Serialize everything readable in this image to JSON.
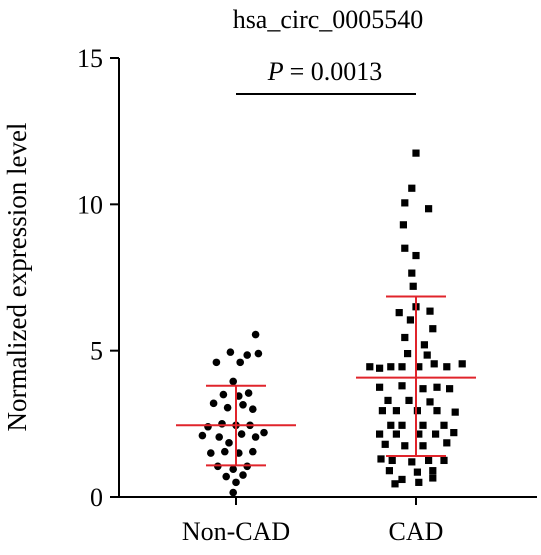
{
  "chart_data": {
    "type": "scatter",
    "title": "hsa_circ_0005540",
    "ylabel": "Normalized expression level",
    "xlabel": "",
    "ylim": [
      0,
      15
    ],
    "yticks": [
      0,
      5,
      10,
      15
    ],
    "categories": [
      "Non-CAD",
      "CAD"
    ],
    "annotation": {
      "p_label": "P",
      "p_value_text": "= 0.0013"
    },
    "colors": {
      "points": "#000000",
      "summary_lines": "#e0242b",
      "axis": "#000000"
    },
    "series": [
      {
        "name": "Non-CAD",
        "marker": "circle",
        "mean": 2.45,
        "sd_low": 1.08,
        "sd_high": 3.8,
        "points": [
          {
            "x": 0.14,
            "y": 5.55
          },
          {
            "x": -0.04,
            "y": 4.95
          },
          {
            "x": 0.08,
            "y": 4.85
          },
          {
            "x": 0.16,
            "y": 4.9
          },
          {
            "x": -0.14,
            "y": 4.6
          },
          {
            "x": 0.03,
            "y": 4.6
          },
          {
            "x": -0.02,
            "y": 3.95
          },
          {
            "x": -0.09,
            "y": 3.5
          },
          {
            "x": 0.02,
            "y": 3.45
          },
          {
            "x": 0.09,
            "y": 3.55
          },
          {
            "x": -0.16,
            "y": 3.2
          },
          {
            "x": -0.06,
            "y": 3.05
          },
          {
            "x": 0.05,
            "y": 3.15
          },
          {
            "x": 0.12,
            "y": 3.0
          },
          {
            "x": -0.2,
            "y": 2.4
          },
          {
            "x": -0.1,
            "y": 2.5
          },
          {
            "x": 0.0,
            "y": 2.45
          },
          {
            "x": 0.1,
            "y": 2.45
          },
          {
            "x": 0.2,
            "y": 2.2
          },
          {
            "x": -0.24,
            "y": 2.1
          },
          {
            "x": -0.12,
            "y": 2.05
          },
          {
            "x": 0.04,
            "y": 2.15
          },
          {
            "x": 0.14,
            "y": 2.05
          },
          {
            "x": -0.05,
            "y": 1.85
          },
          {
            "x": -0.18,
            "y": 1.5
          },
          {
            "x": -0.08,
            "y": 1.55
          },
          {
            "x": 0.02,
            "y": 1.5
          },
          {
            "x": 0.12,
            "y": 1.55
          },
          {
            "x": -0.13,
            "y": 1.05
          },
          {
            "x": -0.02,
            "y": 0.95
          },
          {
            "x": 0.08,
            "y": 1.05
          },
          {
            "x": -0.07,
            "y": 0.7
          },
          {
            "x": 0.05,
            "y": 0.75
          },
          {
            "x": 0.0,
            "y": 0.5
          },
          {
            "x": -0.02,
            "y": 0.15
          }
        ]
      },
      {
        "name": "CAD",
        "marker": "square",
        "mean": 4.08,
        "sd_low": 1.4,
        "sd_high": 6.85,
        "points": [
          {
            "x": 0.0,
            "y": 11.75
          },
          {
            "x": -0.03,
            "y": 10.55
          },
          {
            "x": -0.08,
            "y": 10.05
          },
          {
            "x": 0.09,
            "y": 9.85
          },
          {
            "x": -0.09,
            "y": 9.3
          },
          {
            "x": -0.08,
            "y": 8.5
          },
          {
            "x": 0.0,
            "y": 8.25
          },
          {
            "x": -0.03,
            "y": 7.65
          },
          {
            "x": -0.02,
            "y": 7.2
          },
          {
            "x": 0.0,
            "y": 6.5
          },
          {
            "x": -0.12,
            "y": 6.3
          },
          {
            "x": 0.1,
            "y": 6.35
          },
          {
            "x": -0.04,
            "y": 6.05
          },
          {
            "x": 0.12,
            "y": 5.75
          },
          {
            "x": -0.08,
            "y": 5.45
          },
          {
            "x": 0.06,
            "y": 5.2
          },
          {
            "x": -0.06,
            "y": 4.9
          },
          {
            "x": 0.08,
            "y": 4.85
          },
          {
            "x": -0.33,
            "y": 4.45
          },
          {
            "x": -0.26,
            "y": 4.4
          },
          {
            "x": -0.18,
            "y": 4.45
          },
          {
            "x": -0.1,
            "y": 4.45
          },
          {
            "x": 0.02,
            "y": 4.45
          },
          {
            "x": 0.13,
            "y": 4.55
          },
          {
            "x": 0.22,
            "y": 4.45
          },
          {
            "x": 0.33,
            "y": 4.55
          },
          {
            "x": -0.26,
            "y": 3.75
          },
          {
            "x": -0.1,
            "y": 3.8
          },
          {
            "x": 0.05,
            "y": 3.7
          },
          {
            "x": 0.15,
            "y": 3.75
          },
          {
            "x": 0.24,
            "y": 3.7
          },
          {
            "x": -0.2,
            "y": 3.3
          },
          {
            "x": -0.05,
            "y": 3.3
          },
          {
            "x": 0.1,
            "y": 3.25
          },
          {
            "x": -0.24,
            "y": 2.95
          },
          {
            "x": -0.14,
            "y": 2.95
          },
          {
            "x": 0.01,
            "y": 2.95
          },
          {
            "x": 0.15,
            "y": 2.95
          },
          {
            "x": 0.28,
            "y": 2.9
          },
          {
            "x": -0.18,
            "y": 2.45
          },
          {
            "x": -0.1,
            "y": 2.45
          },
          {
            "x": 0.05,
            "y": 2.45
          },
          {
            "x": 0.2,
            "y": 2.45
          },
          {
            "x": -0.26,
            "y": 2.15
          },
          {
            "x": -0.14,
            "y": 2.15
          },
          {
            "x": 0.02,
            "y": 2.15
          },
          {
            "x": 0.14,
            "y": 2.15
          },
          {
            "x": 0.27,
            "y": 2.2
          },
          {
            "x": -0.22,
            "y": 1.8
          },
          {
            "x": -0.08,
            "y": 1.75
          },
          {
            "x": 0.05,
            "y": 1.75
          },
          {
            "x": 0.22,
            "y": 1.85
          },
          {
            "x": -0.25,
            "y": 1.3
          },
          {
            "x": -0.17,
            "y": 1.25
          },
          {
            "x": -0.03,
            "y": 1.2
          },
          {
            "x": 0.09,
            "y": 1.25
          },
          {
            "x": 0.2,
            "y": 1.25
          },
          {
            "x": -0.19,
            "y": 0.9
          },
          {
            "x": 0.01,
            "y": 0.85
          },
          {
            "x": 0.12,
            "y": 0.9
          },
          {
            "x": -0.1,
            "y": 0.6
          },
          {
            "x": 0.12,
            "y": 0.65
          },
          {
            "x": -0.15,
            "y": 0.45
          },
          {
            "x": 0.02,
            "y": 0.5
          }
        ]
      }
    ]
  }
}
